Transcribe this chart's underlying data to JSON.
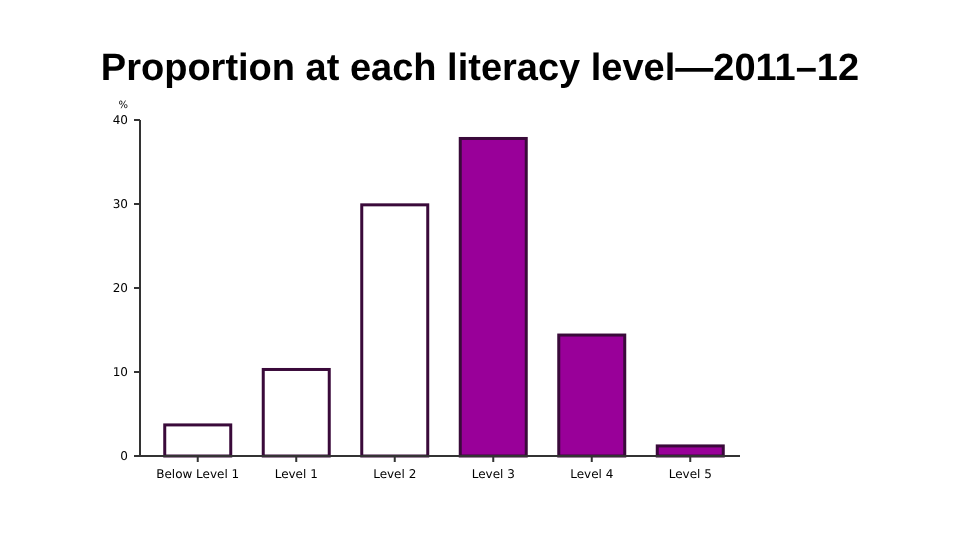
{
  "chart_data": {
    "type": "bar",
    "title": "Proportion at each literacy level—2011–12",
    "ylabel": "%",
    "categories": [
      "Below Level 1",
      "Level 1",
      "Level 2",
      "Level 3",
      "Level 4",
      "Level 5"
    ],
    "values": [
      3.7,
      10.3,
      29.9,
      37.8,
      14.4,
      1.2
    ],
    "colors": [
      "#ffffff",
      "#ffffff",
      "#ffffff",
      "#990099",
      "#990099",
      "#990099"
    ],
    "ylim": [
      0,
      40
    ],
    "yticks": [
      0,
      10,
      20,
      30,
      40
    ]
  }
}
